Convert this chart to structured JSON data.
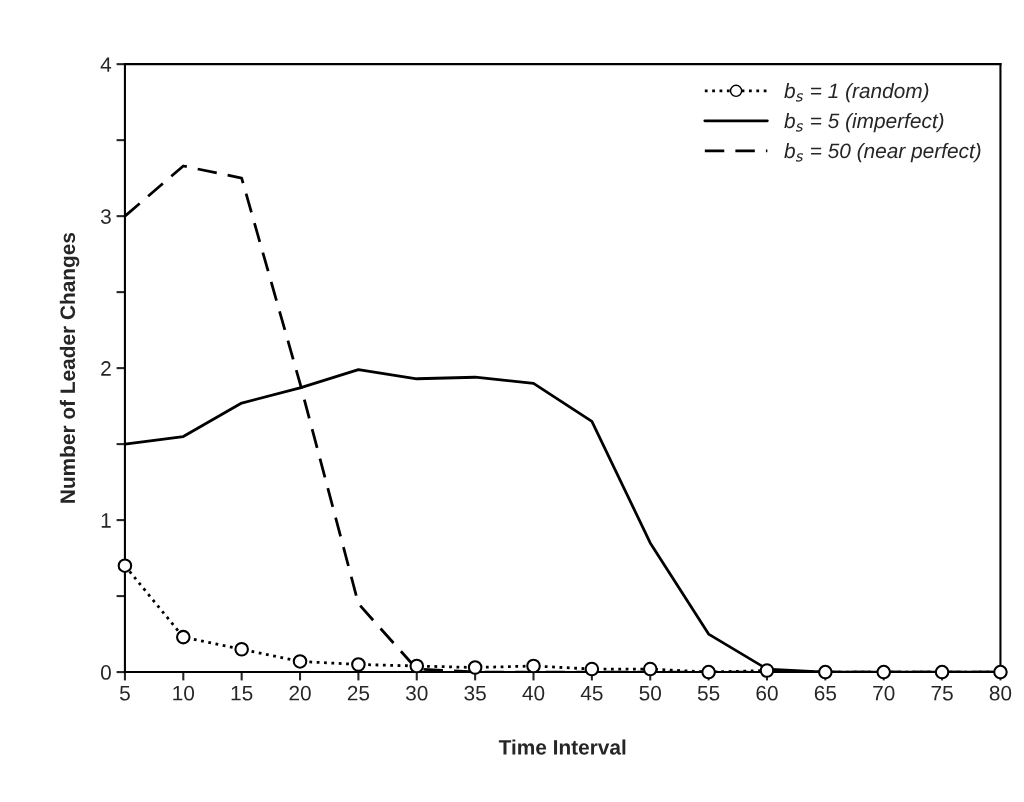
{
  "chart_data": {
    "type": "line",
    "xlabel": "Time Interval",
    "ylabel": "Number of Leader Changes",
    "x": [
      5,
      10,
      15,
      20,
      25,
      30,
      35,
      40,
      45,
      50,
      55,
      60,
      65,
      70,
      75,
      80
    ],
    "xlim": [
      5,
      80
    ],
    "xticks": [
      5,
      10,
      15,
      20,
      25,
      30,
      35,
      40,
      45,
      50,
      55,
      60,
      65,
      70,
      75,
      80
    ],
    "ylim": [
      0,
      4
    ],
    "yticks": [
      0,
      {
        "value": 0.5,
        "label": null
      },
      1,
      {
        "value": 1.5,
        "label": null
      },
      2,
      {
        "value": 2.5,
        "label": null
      },
      3,
      {
        "value": 3.5,
        "label": null
      },
      4
    ],
    "grid": false,
    "legend": "top right",
    "series": [
      {
        "name": "b$_{s}$ = 1 (random)",
        "color": "#000000",
        "marker": "circle",
        "line_style": "dotted",
        "values": [
          0.7,
          0.23,
          0.15,
          0.07,
          0.05,
          0.04,
          0.03,
          0.04,
          0.02,
          0.02,
          0.0,
          0.01,
          0.0,
          0.0,
          0.0,
          0.0
        ]
      },
      {
        "name": "b$_{s}$ = 5 (imperfect)",
        "color": "#000000",
        "marker": "none",
        "line_style": "solid",
        "values": [
          1.5,
          1.55,
          1.77,
          1.87,
          1.99,
          1.93,
          1.94,
          1.9,
          1.65,
          0.85,
          0.25,
          0.02,
          0.0,
          0.0,
          0.0,
          0.0
        ]
      },
      {
        "name": "b$_{s}$ = 50 (near perfect)",
        "color": "#000000",
        "marker": "none",
        "line_style": "dashed",
        "values": [
          3.0,
          3.33,
          3.25,
          1.9,
          0.45,
          0.02,
          0.0,
          0.0,
          0.0,
          0.0,
          0.0,
          0.0,
          0.0,
          0.0,
          0.0,
          0.0
        ]
      }
    ]
  }
}
